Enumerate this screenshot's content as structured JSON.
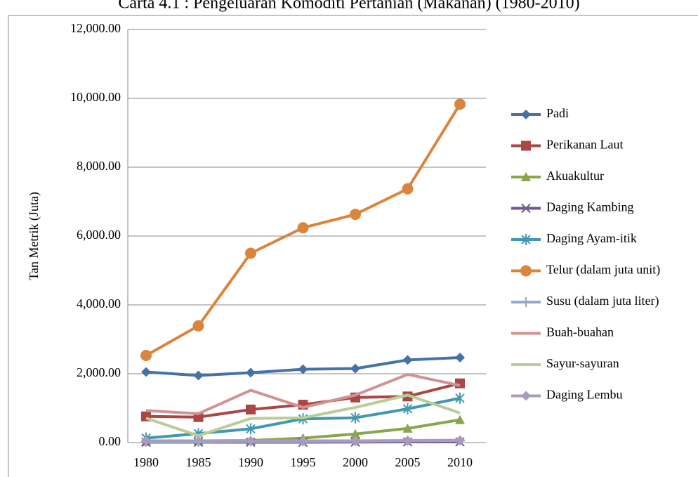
{
  "chart_data": {
    "type": "line",
    "title": "Carta 4.1 : Pengeluaran Komoditi Pertanian (Makanan) (1980-2010)",
    "y_label": "Tan Metrik (Juta)",
    "categories": [
      "1980",
      "1985",
      "1990",
      "1995",
      "2000",
      "2005",
      "2010"
    ],
    "ylim": [
      0,
      12000
    ],
    "yticks": [
      {
        "value": 0,
        "label": "0.00"
      },
      {
        "value": 2000,
        "label": "2,000.00"
      },
      {
        "value": 4000,
        "label": "4,000.00"
      },
      {
        "value": 6000,
        "label": "6,000.00"
      },
      {
        "value": 8000,
        "label": "8,000.00"
      },
      {
        "value": 10000,
        "label": "10,000.00"
      },
      {
        "value": 12000,
        "label": "12,000.00"
      }
    ],
    "grid": true,
    "legend": "right",
    "series": [
      {
        "name": "Padi",
        "color": "#4572a7",
        "marker": "diamond",
        "values": [
          2050,
          1950,
          2030,
          2130,
          2150,
          2400,
          2470
        ]
      },
      {
        "name": "Perikanan Laut",
        "color": "#aa4643",
        "marker": "square",
        "values": [
          760,
          740,
          960,
          1100,
          1310,
          1340,
          1720
        ]
      },
      {
        "name": "Akuakultur",
        "color": "#89a54e",
        "marker": "triangle",
        "values": [
          30,
          50,
          60,
          130,
          250,
          410,
          660
        ]
      },
      {
        "name": "Daging Kambing",
        "color": "#71588f",
        "marker": "x",
        "values": [
          10,
          10,
          10,
          10,
          15,
          20,
          20
        ]
      },
      {
        "name": "Daging Ayam-itik",
        "color": "#4198af",
        "marker": "asterisk",
        "values": [
          130,
          260,
          400,
          690,
          720,
          980,
          1290
        ]
      },
      {
        "name": "Telur (dalam juta unit)",
        "color": "#db843d",
        "marker": "circle",
        "values": [
          2530,
          3390,
          5500,
          6240,
          6630,
          7370,
          9830
        ]
      },
      {
        "name": "Susu (dalam juta liter)",
        "color": "#93a9cf",
        "marker": "plus",
        "values": [
          20,
          20,
          30,
          30,
          40,
          50,
          60
        ]
      },
      {
        "name": "Buah-buahan",
        "color": "#d19392",
        "marker": "none",
        "values": [
          930,
          840,
          1520,
          1020,
          1380,
          1980,
          1660
        ]
      },
      {
        "name": "Sayur-sayuran",
        "color": "#b9cd96",
        "marker": "none",
        "values": [
          710,
          200,
          700,
          720,
          1020,
          1380,
          860
        ]
      },
      {
        "name": "Daging Lembu",
        "color": "#a99bbd",
        "marker": "diamond",
        "values": [
          50,
          50,
          50,
          50,
          50,
          60,
          70
        ]
      }
    ]
  }
}
